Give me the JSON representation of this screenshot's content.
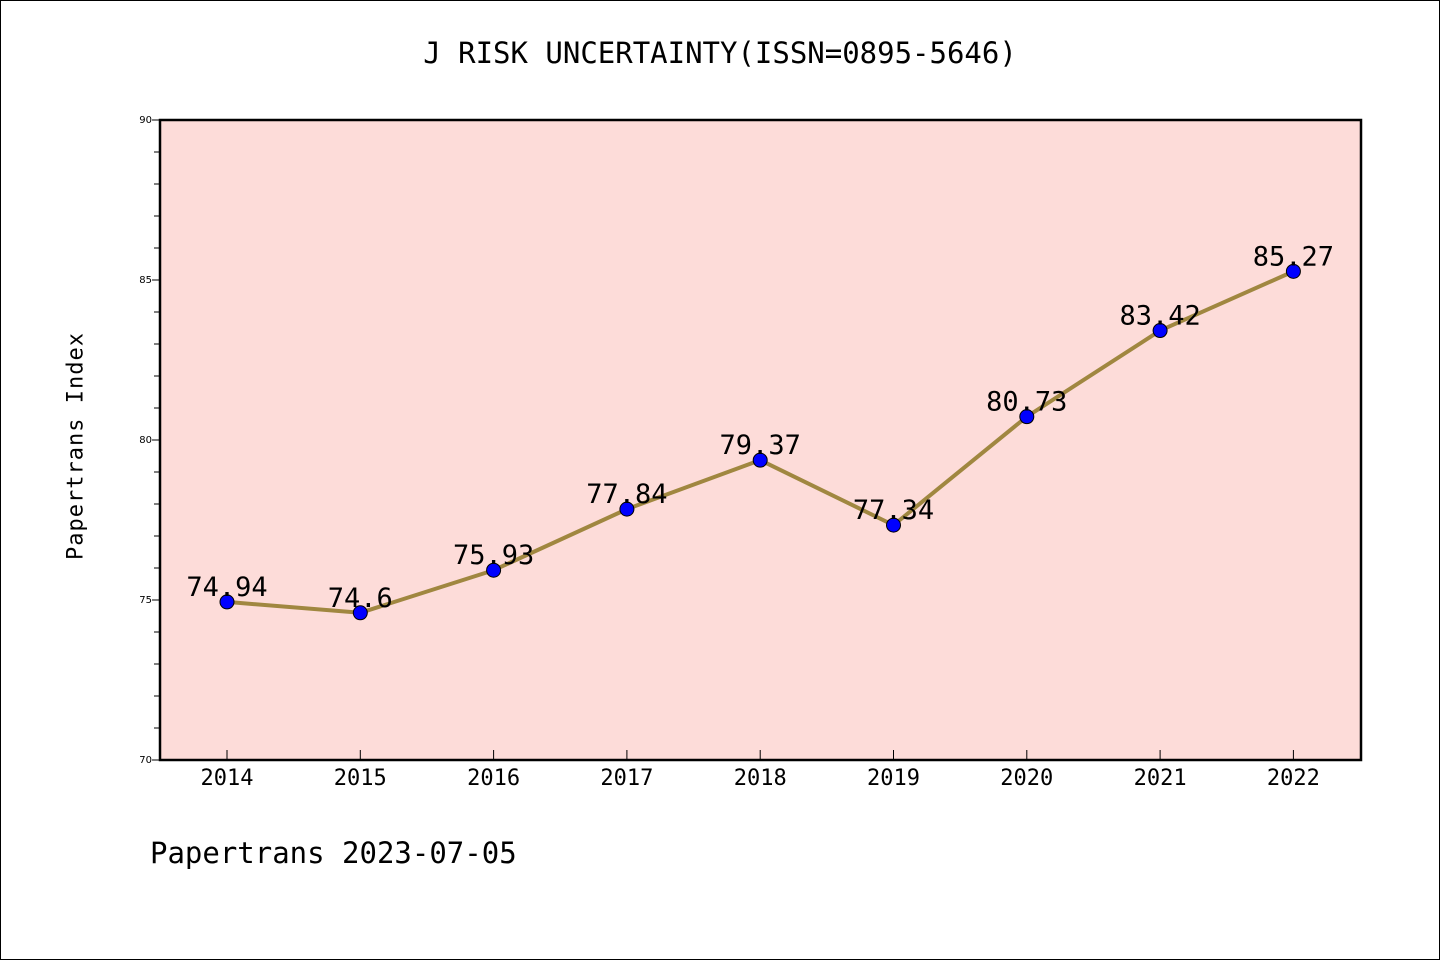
{
  "chart_data": {
    "type": "line",
    "title": "J RISK UNCERTAINTY(ISSN=0895-5646)",
    "ylabel": "Papertrans Index",
    "xlabel": "",
    "footer": "Papertrans 2023-07-05",
    "categories": [
      "2014",
      "2015",
      "2016",
      "2017",
      "2018",
      "2019",
      "2020",
      "2021",
      "2022"
    ],
    "series": [
      {
        "values": [
          74.94,
          74.6,
          75.93,
          77.84,
          79.37,
          77.34,
          80.73,
          83.42,
          85.27
        ],
        "labels": [
          "74.94",
          "74.6",
          "75.93",
          "77.84",
          "79.37",
          "77.34",
          "80.73",
          "83.42",
          "85.27"
        ],
        "line_color": "#a08740",
        "marker_color": "#0000ff"
      }
    ],
    "ylim": [
      70,
      90
    ],
    "yticks": [
      "70",
      "75",
      "80",
      "85",
      "90"
    ],
    "grid": false,
    "legend": "none",
    "plot_background": "#fddcd9"
  }
}
